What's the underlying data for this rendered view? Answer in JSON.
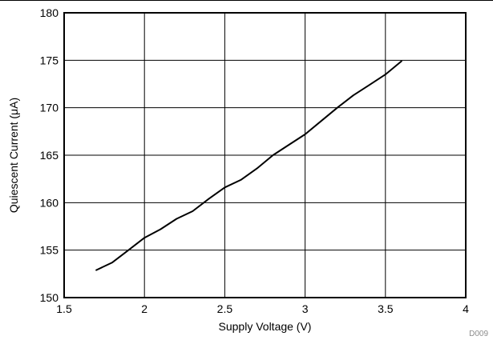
{
  "chart_data": {
    "type": "line",
    "title": "",
    "xlabel": "Supply Voltage (V)",
    "ylabel": "Quiescent Current (μA)",
    "xlim": [
      1.5,
      4
    ],
    "ylim": [
      150,
      180
    ],
    "x_ticks": [
      "1.5",
      "2",
      "2.5",
      "3",
      "3.5",
      "4"
    ],
    "y_ticks": [
      "150",
      "155",
      "160",
      "165",
      "170",
      "175",
      "180"
    ],
    "grid": true,
    "series": [
      {
        "x": [
          1.7,
          1.8,
          1.9,
          2.0,
          2.1,
          2.2,
          2.3,
          2.4,
          2.5,
          2.6,
          2.7,
          2.8,
          2.9,
          3.0,
          3.1,
          3.2,
          3.3,
          3.4,
          3.5,
          3.6
        ],
        "y": [
          152.9,
          153.7,
          155.0,
          156.3,
          157.2,
          158.3,
          159.1,
          160.4,
          161.6,
          162.4,
          163.6,
          165.0,
          166.1,
          167.2,
          168.6,
          170.0,
          171.3,
          172.4,
          173.5,
          174.9
        ]
      }
    ],
    "line_color": "#000000",
    "figure_code": "D009"
  }
}
